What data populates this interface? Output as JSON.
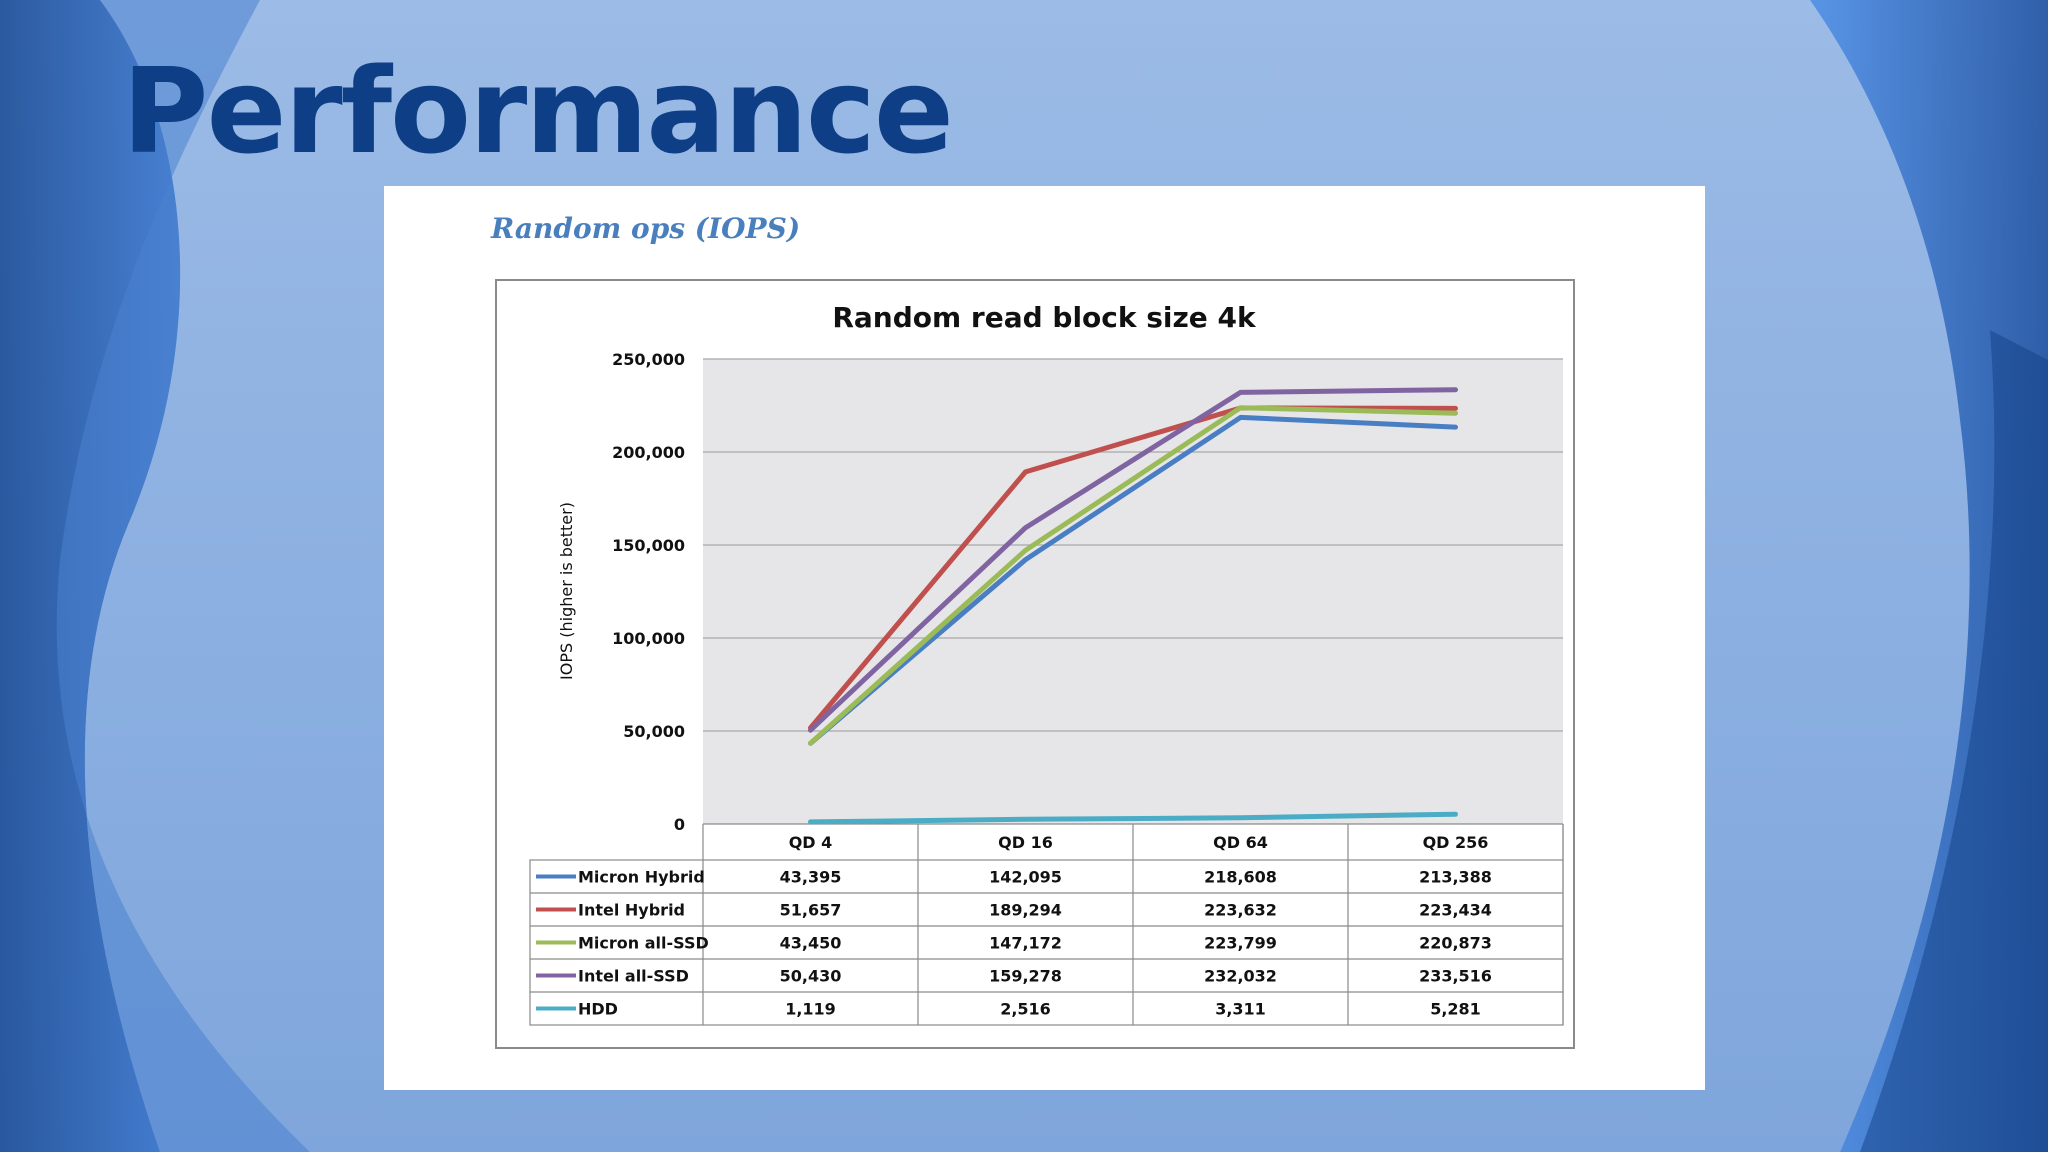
{
  "slide": {
    "title": "Performance",
    "caption": "Random ops (IOPS)"
  },
  "theme": {
    "title_color": "#0e3f86",
    "caption_color": "#4a7fbd",
    "plot_background": "#e6e6e8"
  },
  "chart_data": {
    "type": "line",
    "title": "Random read block size 4k",
    "xlabel": "",
    "ylabel": "IOPS (higher is better)",
    "categories": [
      "QD 4",
      "QD 16",
      "QD 64",
      "QD 256"
    ],
    "ylim": [
      0,
      250000
    ],
    "yticks": [
      "0",
      "50,000",
      "100,000",
      "150,000",
      "200,000",
      "250,000"
    ],
    "grid": true,
    "legend": "data-table",
    "series": [
      {
        "name": "Micron Hybrid",
        "color": "#4a7ec4",
        "values": [
          43395,
          142095,
          218608,
          213388
        ],
        "labels": [
          "43,395",
          "142,095",
          "218,608",
          "213,388"
        ]
      },
      {
        "name": "Intel Hybrid",
        "color": "#c0504d",
        "values": [
          51657,
          189294,
          223632,
          223434
        ],
        "labels": [
          "51,657",
          "189,294",
          "223,632",
          "223,434"
        ]
      },
      {
        "name": "Micron all-SSD",
        "color": "#9bbb59",
        "values": [
          43450,
          147172,
          223799,
          220873
        ],
        "labels": [
          "43,450",
          "147,172",
          "223,799",
          "220,873"
        ]
      },
      {
        "name": "Intel all-SSD",
        "color": "#8064a2",
        "values": [
          50430,
          159278,
          232032,
          233516
        ],
        "labels": [
          "50,430",
          "159,278",
          "232,032",
          "233,516"
        ]
      },
      {
        "name": "HDD",
        "color": "#4bacc6",
        "values": [
          1119,
          2516,
          3311,
          5281
        ],
        "labels": [
          "1,119",
          "2,516",
          "3,311",
          "5,281"
        ]
      }
    ]
  }
}
